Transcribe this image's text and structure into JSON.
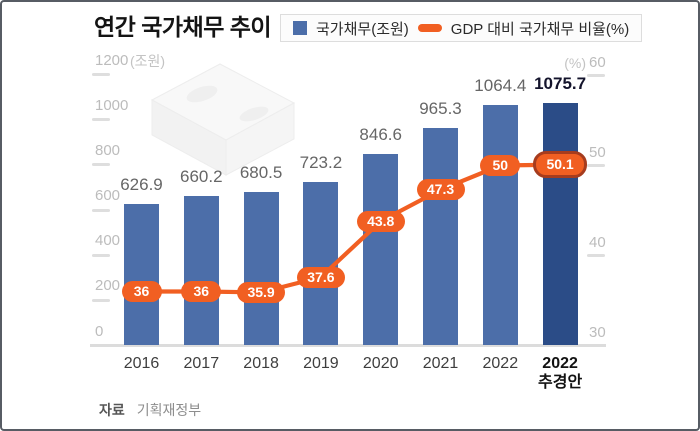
{
  "title": "연간 국가채무 추이",
  "legend": {
    "items": [
      {
        "label": "국가채무(조원)",
        "swatch": "square"
      },
      {
        "label": "GDP 대비 국가채무 비율(%)",
        "swatch": "dash"
      }
    ]
  },
  "source": {
    "label": "자료",
    "value": "기획재정부"
  },
  "colors": {
    "bar": "#4c6ea9",
    "bar_highlight": "#2b4c87",
    "line": "#f15f22",
    "pill_border": "#a63c1e"
  },
  "chart_data": {
    "type": "bar",
    "title": "연간 국가채무 추이",
    "categories": [
      "2016",
      "2017",
      "2018",
      "2019",
      "2020",
      "2021",
      "2022",
      "2022\n추경안"
    ],
    "series": [
      {
        "name": "국가채무(조원)",
        "type": "bar",
        "axis": "left",
        "values": [
          626.9,
          660.2,
          680.5,
          723.2,
          846.6,
          965.3,
          1064.4,
          1075.7
        ]
      },
      {
        "name": "GDP 대비 국가채무 비율(%)",
        "type": "line",
        "axis": "right",
        "values": [
          36,
          36,
          35.9,
          37.6,
          43.8,
          47.3,
          50,
          50.1
        ]
      }
    ],
    "left_axis": {
      "unit": "(조원)",
      "ticks": [
        0,
        200,
        400,
        600,
        800,
        1000,
        1200
      ],
      "range": [
        0,
        1200
      ]
    },
    "right_axis": {
      "unit": "(%)",
      "ticks": [
        30,
        40,
        50,
        60
      ],
      "range": [
        30,
        60
      ]
    },
    "highlight_index": 7,
    "grid": false,
    "legend_position": "top",
    "source": "기획재정부"
  }
}
